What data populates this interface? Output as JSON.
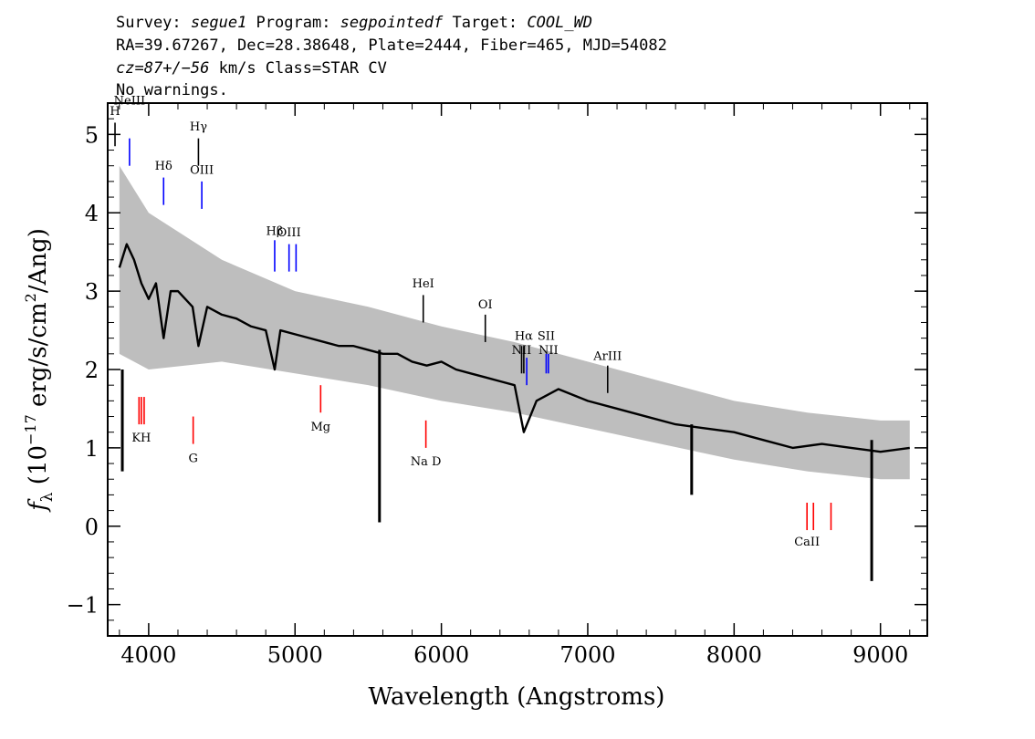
{
  "header": {
    "line1": {
      "survey_prefix": "Survey: ",
      "survey": "segue1",
      "program_prefix": " Program: ",
      "program": "segpointedf",
      "target_prefix": " Target: ",
      "target": "COOL_WD"
    },
    "line2": "RA=39.67267, Dec=28.38648, Plate=2444, Fiber=465, MJD=54082",
    "line3": {
      "cz_symbol": "cz",
      "cz_value": "=87+/−56",
      "rest": " km/s Class=STAR CV"
    },
    "line4": "No warnings."
  },
  "colors": {
    "spectrum": "#000000",
    "error_band": "#bebebe",
    "emission_line": "#0000ff",
    "absorption_line": "#ff0000",
    "neutral_line": "#000000"
  },
  "chart_data": {
    "type": "line",
    "xlabel": "Wavelength (Angstroms)",
    "ylabel": {
      "symbol": "f",
      "subscript": "λ",
      "units_open": " (10",
      "exponent": "−17",
      "units_mid": " erg/s/cm",
      "exponent2": "2",
      "units_close": "/Ang)"
    },
    "xlim": [
      3720,
      9320
    ],
    "ylim": [
      -1.4,
      5.4
    ],
    "x_ticks": [
      {
        "value": 4000,
        "label": "4000"
      },
      {
        "value": 5000,
        "label": "5000"
      },
      {
        "value": 6000,
        "label": "6000"
      },
      {
        "value": 7000,
        "label": "7000"
      },
      {
        "value": 8000,
        "label": "8000"
      },
      {
        "value": 9000,
        "label": "9000"
      }
    ],
    "y_ticks": [
      {
        "value": -1,
        "label": "−1"
      },
      {
        "value": 0,
        "label": "0"
      },
      {
        "value": 1,
        "label": "1"
      },
      {
        "value": 2,
        "label": "2"
      },
      {
        "value": 3,
        "label": "3"
      },
      {
        "value": 4,
        "label": "4"
      },
      {
        "value": 5,
        "label": "5"
      }
    ],
    "x_minor_step": 200,
    "y_minor_step": 0.2,
    "spectrum": {
      "x": [
        3800,
        3850,
        3900,
        3950,
        4000,
        4050,
        4102,
        4150,
        4200,
        4250,
        4300,
        4340,
        4400,
        4500,
        4600,
        4700,
        4800,
        4861,
        4900,
        5000,
        5100,
        5200,
        5300,
        5400,
        5500,
        5600,
        5700,
        5800,
        5900,
        6000,
        6100,
        6200,
        6300,
        6400,
        6500,
        6563,
        6650,
        6800,
        7000,
        7200,
        7400,
        7600,
        7800,
        8000,
        8200,
        8400,
        8600,
        8800,
        9000,
        9200
      ],
      "y": [
        3.3,
        3.6,
        3.4,
        3.1,
        2.9,
        3.1,
        2.4,
        3.0,
        3.0,
        2.9,
        2.8,
        2.3,
        2.8,
        2.7,
        2.65,
        2.55,
        2.5,
        2.0,
        2.5,
        2.45,
        2.4,
        2.35,
        2.3,
        2.3,
        2.25,
        2.2,
        2.2,
        2.1,
        2.05,
        2.1,
        2.0,
        1.95,
        1.9,
        1.85,
        1.8,
        1.2,
        1.6,
        1.75,
        1.6,
        1.5,
        1.4,
        1.3,
        1.25,
        1.2,
        1.1,
        1.0,
        1.05,
        1.0,
        0.95,
        1.0
      ]
    },
    "error_band": {
      "x": [
        3800,
        4000,
        4500,
        5000,
        5500,
        6000,
        6500,
        7000,
        7500,
        8000,
        8500,
        9000,
        9200
      ],
      "upper": [
        4.6,
        4.0,
        3.4,
        3.0,
        2.8,
        2.55,
        2.35,
        2.1,
        1.85,
        1.6,
        1.45,
        1.35,
        1.35
      ],
      "lower": [
        2.2,
        2.0,
        2.1,
        1.95,
        1.8,
        1.6,
        1.45,
        1.25,
        1.05,
        0.85,
        0.7,
        0.6,
        0.6
      ]
    },
    "spikes": [
      {
        "x": 3820,
        "y0": 2.0,
        "y1": 0.7
      },
      {
        "x": 5577,
        "y0": 2.25,
        "y1": 0.05
      },
      {
        "x": 7710,
        "y0": 1.3,
        "y1": 0.4
      },
      {
        "x": 8940,
        "y0": 1.1,
        "y1": -0.7
      }
    ],
    "line_markers": [
      {
        "label": "H",
        "x": 3770,
        "y_bottom": 4.85,
        "y_top": 5.15,
        "color": "#000000",
        "label_y": 5.25
      },
      {
        "label": "NeIII",
        "x": 3869,
        "y_bottom": 4.6,
        "y_top": 4.95,
        "color": "#0000ff",
        "label_y": 5.38
      },
      {
        "label": "Hδ",
        "x": 4102,
        "y_bottom": 4.1,
        "y_top": 4.45,
        "color": "#0000ff",
        "label_y": 4.55
      },
      {
        "label": "Hγ",
        "x": 4340,
        "y_bottom": 4.6,
        "y_top": 4.95,
        "color": "#000000",
        "label_y": 5.05
      },
      {
        "label": "OIII",
        "x": 4363,
        "y_bottom": 4.05,
        "y_top": 4.4,
        "color": "#0000ff",
        "label_y": 4.5
      },
      {
        "label": "Hβ",
        "x": 4861,
        "y_bottom": 3.25,
        "y_top": 3.65,
        "color": "#0000ff",
        "label_y": 3.72
      },
      {
        "label": "OIII",
        "x": 4959,
        "y_bottom": 3.25,
        "y_top": 3.6,
        "color": "#0000ff",
        "label_y": 3.7
      },
      {
        "label": "",
        "x": 5007,
        "y_bottom": 3.25,
        "y_top": 3.6,
        "color": "#0000ff",
        "label_y": 3.7
      },
      {
        "label": "HeI",
        "x": 5876,
        "y_bottom": 2.6,
        "y_top": 2.95,
        "color": "#000000",
        "label_y": 3.05
      },
      {
        "label": "OI",
        "x": 6300,
        "y_bottom": 2.35,
        "y_top": 2.7,
        "color": "#000000",
        "label_y": 2.78
      },
      {
        "label": "NII",
        "x": 6548,
        "y_bottom": 1.95,
        "y_top": 2.3,
        "color": "#000000",
        "label_y": 2.2
      },
      {
        "label": "Hα",
        "x": 6563,
        "y_bottom": 1.95,
        "y_top": 2.3,
        "color": "#000000",
        "label_y": 2.38
      },
      {
        "label": "",
        "x": 6583,
        "y_bottom": 1.8,
        "y_top": 2.15,
        "color": "#0000ff",
        "label_y": 2.2
      },
      {
        "label": "SII",
        "x": 6716,
        "y_bottom": 1.95,
        "y_top": 2.2,
        "color": "#0000ff",
        "label_y": 2.38
      },
      {
        "label": "NII",
        "x": 6731,
        "y_bottom": 1.95,
        "y_top": 2.2,
        "color": "#0000ff",
        "label_y": 2.2
      },
      {
        "label": "ArIII",
        "x": 7136,
        "y_bottom": 1.7,
        "y_top": 2.05,
        "color": "#000000",
        "label_y": 2.12
      },
      {
        "label": "KH",
        "x": 3950,
        "y_bottom": 1.3,
        "y_top": 1.65,
        "color": "#ff0000",
        "label_y": 1.08
      },
      {
        "label": "",
        "x": 3934,
        "y_bottom": 1.3,
        "y_top": 1.65,
        "color": "#ff0000",
        "label_y": 1.08
      },
      {
        "label": "",
        "x": 3969,
        "y_bottom": 1.3,
        "y_top": 1.65,
        "color": "#ff0000",
        "label_y": 1.08
      },
      {
        "label": "G",
        "x": 4304,
        "y_bottom": 1.05,
        "y_top": 1.4,
        "color": "#ff0000",
        "label_y": 0.82
      },
      {
        "label": "Mg",
        "x": 5175,
        "y_bottom": 1.45,
        "y_top": 1.8,
        "color": "#ff0000",
        "label_y": 1.22
      },
      {
        "label": "Na D",
        "x": 5894,
        "y_bottom": 1.0,
        "y_top": 1.35,
        "color": "#ff0000",
        "label_y": 0.78
      },
      {
        "label": "CaII",
        "x": 8498,
        "y_bottom": -0.05,
        "y_top": 0.3,
        "color": "#ff0000",
        "label_y": -0.25
      },
      {
        "label": "",
        "x": 8542,
        "y_bottom": -0.05,
        "y_top": 0.3,
        "color": "#ff0000",
        "label_y": -0.25
      },
      {
        "label": "",
        "x": 8662,
        "y_bottom": -0.05,
        "y_top": 0.3,
        "color": "#ff0000",
        "label_y": -0.25
      }
    ]
  }
}
